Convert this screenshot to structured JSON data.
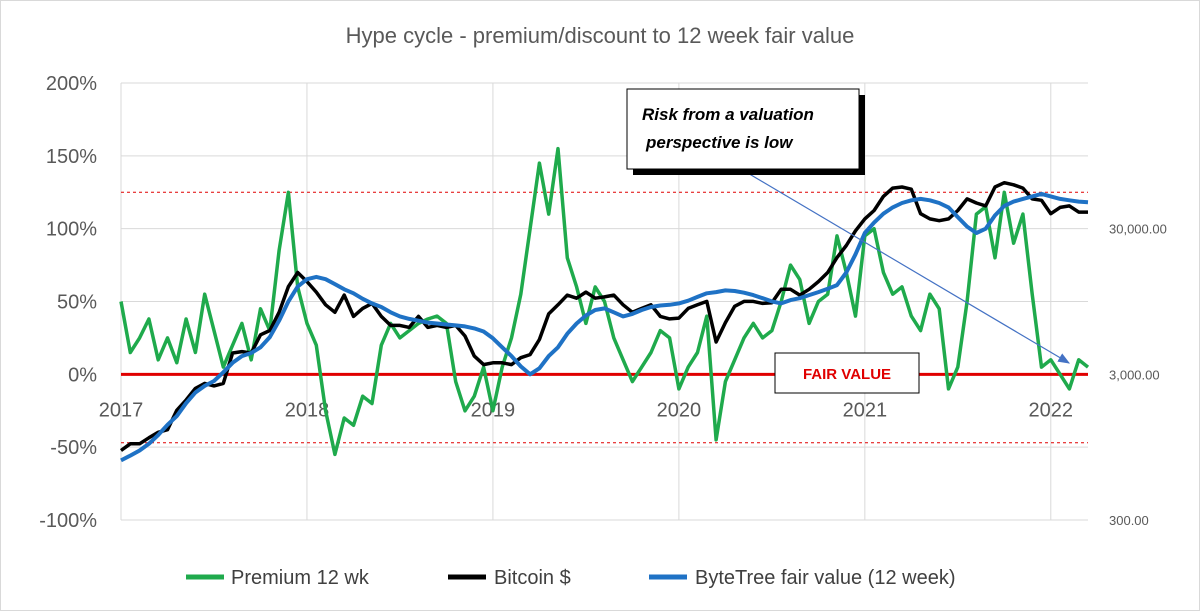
{
  "chart_data": {
    "type": "line",
    "title": "Hype cycle - premium/discount to 12 week fair value",
    "left_axis": {
      "ticks": [
        "200%",
        "150%",
        "100%",
        "50%",
        "0%",
        "-50%",
        "-100%"
      ],
      "values": [
        200,
        150,
        100,
        50,
        0,
        -50,
        -100
      ],
      "ylim": [
        -100,
        200
      ]
    },
    "right_axis": {
      "scale": "log",
      "ticks": [
        "30,000.00",
        "3,000.00",
        "300.00"
      ],
      "values": [
        30000,
        3000,
        300
      ]
    },
    "x_axis": {
      "ticks": [
        "2017",
        "2018",
        "2019",
        "2020",
        "2021",
        "2022"
      ],
      "xlim": [
        2017.0,
        2022.2
      ]
    },
    "reference_lines": [
      {
        "name": "fair-value-line",
        "y": 0,
        "color": "#e00000",
        "style": "solid"
      },
      {
        "name": "upper-band",
        "y": 125,
        "color": "#e00000",
        "style": "dashed"
      },
      {
        "name": "lower-band",
        "y": -47,
        "color": "#e00000",
        "style": "dashed"
      }
    ],
    "fair_value_label": "FAIR VALUE",
    "annotation": {
      "lines": [
        "Risk from a valuation",
        "perspective is low"
      ]
    },
    "series": [
      {
        "name": "Premium 12 wk",
        "axis": "left",
        "color": "#1faa4c",
        "x": [
          2017.0,
          2017.05,
          2017.1,
          2017.15,
          2017.2,
          2017.25,
          2017.3,
          2017.35,
          2017.4,
          2017.45,
          2017.5,
          2017.55,
          2017.6,
          2017.65,
          2017.7,
          2017.75,
          2017.8,
          2017.85,
          2017.9,
          2017.95,
          2018.0,
          2018.05,
          2018.1,
          2018.15,
          2018.2,
          2018.25,
          2018.3,
          2018.35,
          2018.4,
          2018.45,
          2018.5,
          2018.55,
          2018.6,
          2018.65,
          2018.7,
          2018.75,
          2018.8,
          2018.85,
          2018.9,
          2018.95,
          2019.0,
          2019.05,
          2019.1,
          2019.15,
          2019.2,
          2019.25,
          2019.3,
          2019.35,
          2019.4,
          2019.45,
          2019.5,
          2019.55,
          2019.6,
          2019.65,
          2019.7,
          2019.75,
          2019.8,
          2019.85,
          2019.9,
          2019.95,
          2020.0,
          2020.05,
          2020.1,
          2020.15,
          2020.2,
          2020.25,
          2020.3,
          2020.35,
          2020.4,
          2020.45,
          2020.5,
          2020.55,
          2020.6,
          2020.65,
          2020.7,
          2020.75,
          2020.8,
          2020.85,
          2020.9,
          2020.95,
          2021.0,
          2021.05,
          2021.1,
          2021.15,
          2021.2,
          2021.25,
          2021.3,
          2021.35,
          2021.4,
          2021.45,
          2021.5,
          2021.55,
          2021.6,
          2021.65,
          2021.7,
          2021.75,
          2021.8,
          2021.85,
          2021.9,
          2021.95,
          2022.0,
          2022.05,
          2022.1,
          2022.15,
          2022.2
        ],
        "values": [
          50,
          15,
          25,
          38,
          10,
          25,
          8,
          38,
          15,
          55,
          30,
          5,
          20,
          35,
          10,
          45,
          30,
          85,
          125,
          60,
          35,
          20,
          -25,
          -55,
          -30,
          -35,
          -15,
          -20,
          20,
          35,
          25,
          30,
          35,
          38,
          40,
          35,
          -5,
          -25,
          -15,
          5,
          -25,
          5,
          25,
          55,
          100,
          145,
          110,
          155,
          80,
          60,
          35,
          60,
          50,
          25,
          10,
          -5,
          5,
          15,
          30,
          25,
          -10,
          5,
          15,
          40,
          -45,
          -5,
          10,
          25,
          35,
          25,
          30,
          50,
          75,
          65,
          35,
          50,
          55,
          95,
          70,
          40,
          95,
          100,
          70,
          55,
          60,
          40,
          30,
          55,
          45,
          -10,
          5,
          50,
          110,
          115,
          80,
          125,
          90,
          110,
          55,
          5,
          10,
          0,
          -10,
          10,
          5
        ]
      },
      {
        "name": "Bitcoin $",
        "axis": "right",
        "color": "#000000",
        "x": [
          2017.0,
          2017.05,
          2017.1,
          2017.15,
          2017.2,
          2017.25,
          2017.3,
          2017.35,
          2017.4,
          2017.45,
          2017.5,
          2017.55,
          2017.6,
          2017.65,
          2017.7,
          2017.75,
          2017.8,
          2017.85,
          2017.9,
          2017.95,
          2018.0,
          2018.05,
          2018.1,
          2018.15,
          2018.2,
          2018.25,
          2018.3,
          2018.35,
          2018.4,
          2018.45,
          2018.5,
          2018.55,
          2018.6,
          2018.65,
          2018.7,
          2018.75,
          2018.8,
          2018.85,
          2018.9,
          2018.95,
          2019.0,
          2019.05,
          2019.1,
          2019.15,
          2019.2,
          2019.25,
          2019.3,
          2019.35,
          2019.4,
          2019.45,
          2019.5,
          2019.55,
          2019.6,
          2019.65,
          2019.7,
          2019.75,
          2019.8,
          2019.85,
          2019.9,
          2019.95,
          2020.0,
          2020.05,
          2020.1,
          2020.15,
          2020.2,
          2020.25,
          2020.3,
          2020.35,
          2020.4,
          2020.45,
          2020.5,
          2020.55,
          2020.6,
          2020.65,
          2020.7,
          2020.75,
          2020.8,
          2020.85,
          2020.9,
          2020.95,
          2021.0,
          2021.05,
          2021.1,
          2021.15,
          2021.2,
          2021.25,
          2021.3,
          2021.35,
          2021.4,
          2021.45,
          2021.5,
          2021.55,
          2021.6,
          2021.65,
          2021.7,
          2021.75,
          2021.8,
          2021.85,
          2021.9,
          2021.95,
          2022.0,
          2022.05,
          2022.1,
          2022.15,
          2022.2
        ],
        "values": [
          900,
          1000,
          1000,
          1100,
          1200,
          1250,
          1700,
          2000,
          2400,
          2600,
          2500,
          2600,
          4200,
          4300,
          4200,
          5600,
          6000,
          8000,
          12000,
          15000,
          13000,
          11000,
          9000,
          8000,
          10500,
          7500,
          8500,
          9200,
          7500,
          6500,
          6500,
          6300,
          7500,
          6300,
          6500,
          6300,
          6500,
          5500,
          4000,
          3500,
          3600,
          3600,
          3500,
          3900,
          4100,
          5200,
          7800,
          9000,
          10500,
          10000,
          11000,
          10000,
          10200,
          10500,
          9000,
          8000,
          8500,
          9000,
          7500,
          7200,
          7300,
          8500,
          9000,
          9500,
          5000,
          6800,
          8800,
          9500,
          9500,
          9200,
          9300,
          11500,
          11500,
          10500,
          11500,
          13000,
          15000,
          19000,
          23000,
          29000,
          35000,
          40000,
          50000,
          57000,
          58000,
          56000,
          38000,
          35000,
          34000,
          35000,
          40000,
          48000,
          45000,
          43000,
          58000,
          62000,
          60000,
          57000,
          48000,
          47000,
          38000,
          42000,
          43000,
          39000,
          39000
        ]
      },
      {
        "name": "ByteTree fair value (12 week)",
        "axis": "right",
        "color": "#1f72c5",
        "x": [
          2017.0,
          2017.05,
          2017.1,
          2017.15,
          2017.2,
          2017.25,
          2017.3,
          2017.35,
          2017.4,
          2017.45,
          2017.5,
          2017.55,
          2017.6,
          2017.65,
          2017.7,
          2017.75,
          2017.8,
          2017.85,
          2017.9,
          2017.95,
          2018.0,
          2018.05,
          2018.1,
          2018.15,
          2018.2,
          2018.25,
          2018.3,
          2018.35,
          2018.4,
          2018.45,
          2018.5,
          2018.55,
          2018.6,
          2018.65,
          2018.7,
          2018.75,
          2018.8,
          2018.85,
          2018.9,
          2018.95,
          2019.0,
          2019.05,
          2019.1,
          2019.15,
          2019.2,
          2019.25,
          2019.3,
          2019.35,
          2019.4,
          2019.45,
          2019.5,
          2019.55,
          2019.6,
          2019.65,
          2019.7,
          2019.75,
          2019.8,
          2019.85,
          2019.9,
          2019.95,
          2020.0,
          2020.05,
          2020.1,
          2020.15,
          2020.2,
          2020.25,
          2020.3,
          2020.35,
          2020.4,
          2020.45,
          2020.5,
          2020.55,
          2020.6,
          2020.65,
          2020.7,
          2020.75,
          2020.8,
          2020.85,
          2020.9,
          2020.95,
          2021.0,
          2021.05,
          2021.1,
          2021.15,
          2021.2,
          2021.25,
          2021.3,
          2021.35,
          2021.4,
          2021.45,
          2021.5,
          2021.55,
          2021.6,
          2021.65,
          2021.7,
          2021.75,
          2021.8,
          2021.85,
          2021.9,
          2021.95,
          2022.0,
          2022.05,
          2022.1,
          2022.15,
          2022.2
        ],
        "values": [
          770,
          830,
          900,
          1000,
          1150,
          1350,
          1550,
          1900,
          2250,
          2500,
          2700,
          3100,
          3600,
          4000,
          4200,
          4600,
          5400,
          7000,
          9500,
          12000,
          13500,
          14000,
          13500,
          12500,
          11500,
          10800,
          9900,
          9200,
          8700,
          8000,
          7500,
          7200,
          7000,
          6800,
          6700,
          6600,
          6500,
          6400,
          6200,
          5900,
          5300,
          4600,
          4000,
          3400,
          3000,
          3300,
          4000,
          4600,
          5700,
          6700,
          7600,
          8300,
          8500,
          8000,
          7500,
          7800,
          8300,
          8700,
          8900,
          9000,
          9200,
          9600,
          10200,
          10800,
          11000,
          11300,
          11200,
          10900,
          10500,
          10000,
          9500,
          9200,
          9700,
          10000,
          10500,
          11000,
          11600,
          12300,
          15000,
          20000,
          28000,
          33000,
          38000,
          42000,
          45000,
          47000,
          48000,
          47000,
          45000,
          42000,
          36000,
          31000,
          28000,
          30000,
          37000,
          43000,
          46000,
          48000,
          50000,
          52000,
          50000,
          48000,
          47000,
          46000,
          45500
        ]
      }
    ],
    "legend": [
      "Premium 12 wk",
      "Bitcoin $",
      "ByteTree fair value (12 week)"
    ]
  }
}
